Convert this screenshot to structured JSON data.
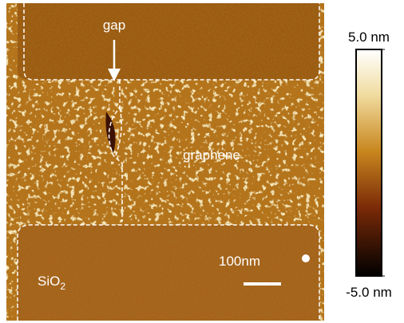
{
  "labels": {
    "gap": "gap",
    "graphene": "graphene",
    "substrate": "SiO",
    "substrate_subscript": "2",
    "scale_bar": "100nm"
  },
  "colorbar": {
    "ticks": [
      {
        "value": 5,
        "label": "5.0 nm"
      },
      {
        "value": -5,
        "label": "-5.0 nm"
      }
    ]
  }
}
